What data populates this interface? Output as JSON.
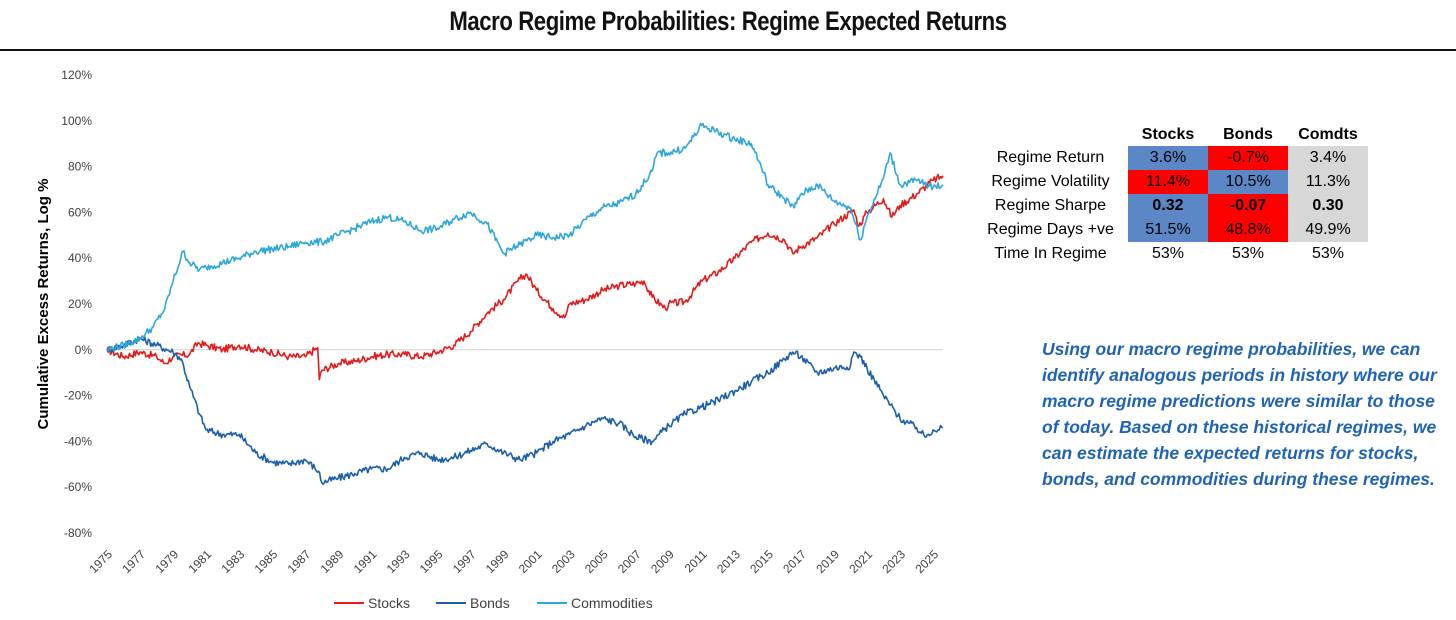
{
  "title": "Macro Regime Probabilities: Regime Expected Returns",
  "colors": {
    "stocks": "#e31b1b",
    "bonds": "#1b5fab",
    "commodities": "#2ea6dc",
    "cell_blue": "#5b87c6",
    "cell_red": "#fe0000",
    "cell_grey": "#d7d7d7",
    "text_blue": "#1f63b8"
  },
  "chart_data": {
    "type": "line",
    "title": "",
    "xlabel": "",
    "ylabel": "Cumulative Excess Returns, Log %",
    "xlim": [
      1975,
      2025.6
    ],
    "ylim": [
      -80,
      120
    ],
    "y_ticks": [
      -80,
      -60,
      -40,
      -20,
      0,
      20,
      40,
      60,
      80,
      100,
      120
    ],
    "y_tick_labels": [
      "-80%",
      "-60%",
      "-40%",
      "-20%",
      "0%",
      "20%",
      "40%",
      "60%",
      "80%",
      "100%",
      "120%"
    ],
    "x_ticks": [
      1975,
      1977,
      1979,
      1981,
      1983,
      1985,
      1987,
      1989,
      1991,
      1993,
      1995,
      1997,
      1999,
      2001,
      2003,
      2005,
      2007,
      2009,
      2011,
      2013,
      2015,
      2017,
      2019,
      2021,
      2023,
      2025
    ],
    "x_tick_labels": [
      "1975",
      "1977",
      "1979",
      "1981",
      "1983",
      "1985",
      "1987",
      "1989",
      "1991",
      "1993",
      "1995",
      "1997",
      "1999",
      "2001",
      "2003",
      "2005",
      "2007",
      "2009",
      "2011",
      "2013",
      "2015",
      "2017",
      "2019",
      "2021",
      "2023",
      "2025"
    ],
    "legend_position": "bottom-center",
    "series": [
      {
        "name": "Stocks",
        "color": "#e31b1b",
        "x": [
          1975,
          1976,
          1977,
          1978,
          1978.5,
          1979,
          1980,
          1980.5,
          1981,
          1982,
          1983,
          1984,
          1985,
          1986,
          1987,
          1987.75,
          1987.85,
          1988,
          1989,
          1990,
          1991,
          1992,
          1993,
          1994,
          1995,
          1996,
          1997,
          1998,
          1999,
          2000,
          2000.4,
          2001,
          2002,
          2002.7,
          2003,
          2004,
          2005,
          2006,
          2007,
          2007.5,
          2008,
          2008.8,
          2009,
          2010,
          2011,
          2012,
          2013,
          2014,
          2015,
          2016,
          2016.5,
          2017,
          2018,
          2019,
          2020,
          2020.2,
          2020.5,
          2021,
          2022,
          2022.5,
          2023,
          2024,
          2025,
          2025.6
        ],
        "y": [
          0,
          -3,
          -1,
          -3,
          -6,
          -3,
          -2,
          3,
          2,
          0,
          2,
          0,
          -1,
          -3,
          -3,
          1,
          -13,
          -9,
          -6,
          -5,
          -3,
          -2,
          -2,
          -3,
          -1,
          2,
          8,
          16,
          22,
          31,
          33,
          26,
          18,
          14,
          20,
          22,
          26,
          28,
          29,
          30,
          23,
          18,
          20,
          21,
          30,
          34,
          40,
          47,
          51,
          48,
          42,
          45,
          49,
          55,
          60,
          61,
          54,
          60,
          66,
          58,
          63,
          68,
          74,
          76
        ]
      },
      {
        "name": "Bonds",
        "color": "#1b5fab",
        "x": [
          1975,
          1976,
          1977,
          1978,
          1979,
          1979.5,
          1980,
          1980.6,
          1981,
          1982,
          1983,
          1984,
          1985,
          1986,
          1987,
          1987.8,
          1988,
          1989,
          1990,
          1991,
          1992,
          1993,
          1994,
          1995,
          1996,
          1997,
          1998,
          1999,
          2000,
          2001,
          2002,
          2003,
          2004,
          2005,
          2006,
          2007,
          2008,
          2009,
          2010,
          2011,
          2012,
          2013,
          2014,
          2015,
          2016,
          2016.5,
          2017,
          2018,
          2019,
          2020,
          2020.2,
          2020.6,
          2021,
          2022,
          2023,
          2024,
          2024.5,
          2025,
          2025.6
        ],
        "y": [
          0,
          2,
          5,
          2,
          -1,
          -4,
          -16,
          -28,
          -35,
          -37,
          -37,
          -45,
          -49,
          -50,
          -48,
          -53,
          -58,
          -56,
          -54,
          -52,
          -52,
          -47,
          -45,
          -48,
          -47,
          -44,
          -41,
          -45,
          -48,
          -45,
          -40,
          -37,
          -33,
          -30,
          -32,
          -38,
          -40,
          -33,
          -28,
          -25,
          -22,
          -18,
          -14,
          -10,
          -4,
          -1,
          -3,
          -10,
          -8,
          -7,
          -1,
          -3,
          -8,
          -20,
          -30,
          -34,
          -38,
          -35,
          -34
        ]
      },
      {
        "name": "Commodities",
        "color": "#2ea6dc",
        "x": [
          1975,
          1976,
          1977,
          1977.8,
          1978.5,
          1979,
          1979.6,
          1980,
          1980.6,
          1981,
          1982,
          1983,
          1984,
          1985,
          1986,
          1987,
          1988,
          1989,
          1990,
          1991,
          1992,
          1993,
          1994,
          1995,
          1996,
          1997,
          1998,
          1999,
          2000,
          2001,
          2002,
          2003,
          2004,
          2005,
          2006,
          2007,
          2008,
          2008.3,
          2009,
          2010,
          2010.5,
          2011,
          2012,
          2013,
          2014,
          2014.6,
          2015,
          2016,
          2016.6,
          2017,
          2018,
          2019,
          2020,
          2020.3,
          2020.6,
          2021,
          2022,
          2022.4,
          2023,
          2024,
          2025,
          2025.6
        ],
        "y": [
          0,
          2,
          5,
          10,
          18,
          30,
          43,
          38,
          35,
          36,
          38,
          40,
          43,
          44,
          45,
          47,
          47,
          50,
          53,
          56,
          58,
          56,
          52,
          53,
          57,
          60,
          55,
          42,
          46,
          50,
          49,
          50,
          57,
          62,
          64,
          68,
          78,
          86,
          86,
          88,
          93,
          98,
          95,
          92,
          90,
          80,
          72,
          66,
          62,
          68,
          72,
          65,
          62,
          55,
          48,
          58,
          75,
          86,
          72,
          74,
          71,
          72
        ]
      }
    ]
  },
  "legend": {
    "items": [
      "Stocks",
      "Bonds",
      "Commodities"
    ]
  },
  "stats_table": {
    "headers": [
      "",
      "Stocks",
      "Bonds",
      "Comdts"
    ],
    "rows": [
      {
        "label": "Regime Return",
        "values": [
          "3.6%",
          "-0.7%",
          "3.4%"
        ]
      },
      {
        "label": "Regime Volatility",
        "values": [
          "11.4%",
          "10.5%",
          "11.3%"
        ]
      },
      {
        "label": "Regime Sharpe",
        "values": [
          "0.32",
          "-0.07",
          "0.30"
        ]
      },
      {
        "label": "Regime Days +ve",
        "values": [
          "51.5%",
          "48.8%",
          "49.9%"
        ]
      },
      {
        "label": "Time In Regime",
        "values": [
          "53%",
          "53%",
          "53%"
        ]
      }
    ]
  },
  "commentary": "Using our macro regime probabilities, we can identify analogous periods in history where our macro regime predictions were similar to those of today. Based on these historical regimes, we can estimate the expected returns for stocks, bonds, and commodities during these regimes."
}
